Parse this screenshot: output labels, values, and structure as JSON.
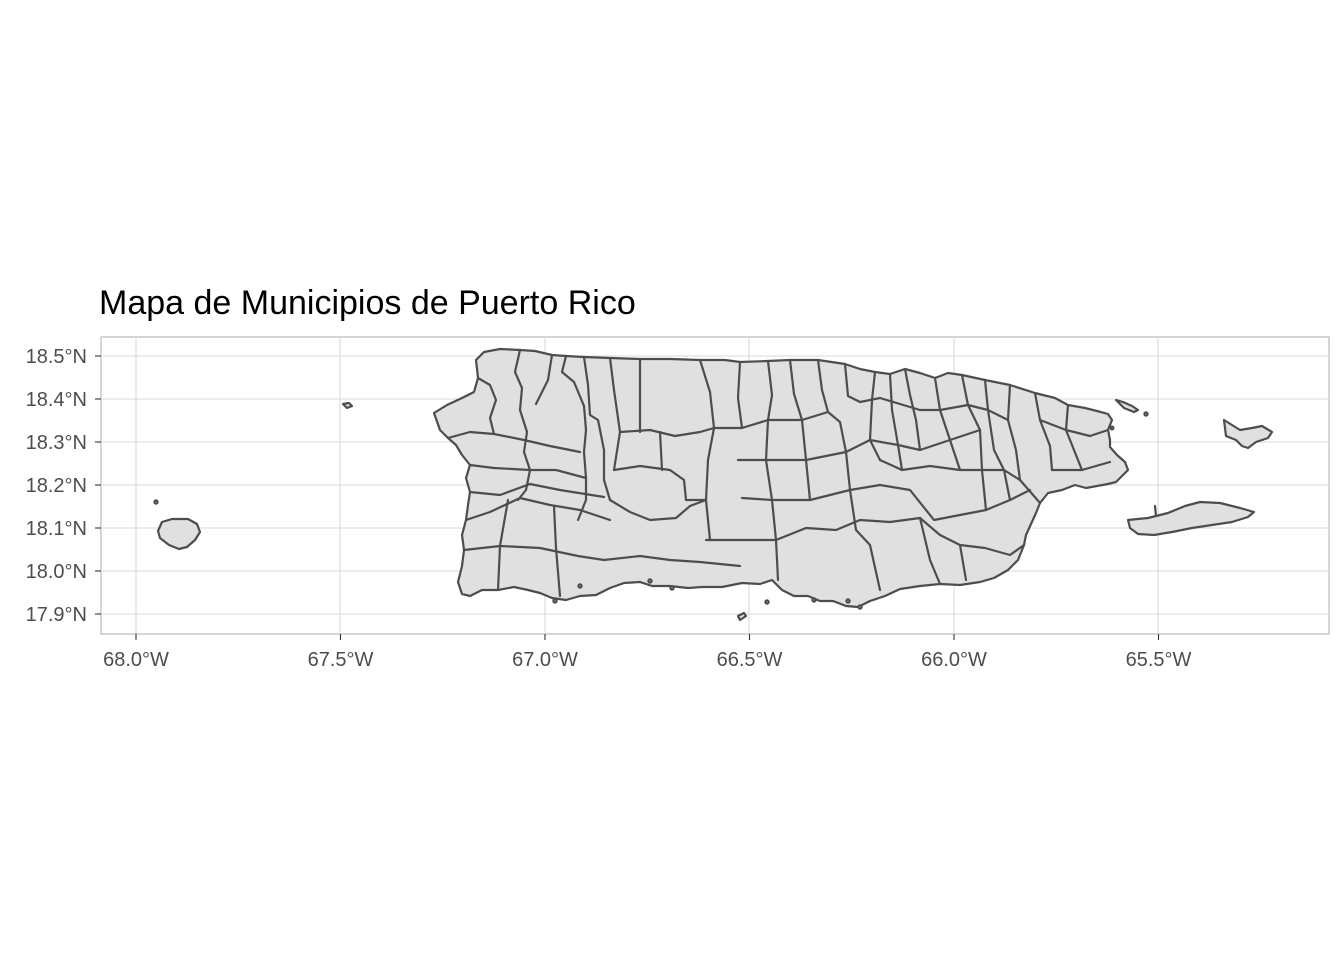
{
  "title": "Mapa de Municipios de Puerto Rico",
  "x_axis": {
    "ticks": [
      {
        "value": -68.0,
        "label": "68.0°W"
      },
      {
        "value": -67.5,
        "label": "67.5°W"
      },
      {
        "value": -67.0,
        "label": "67.0°W"
      },
      {
        "value": -66.5,
        "label": "66.5°W"
      },
      {
        "value": -66.0,
        "label": "66.0°W"
      },
      {
        "value": -65.5,
        "label": "65.5°W"
      }
    ]
  },
  "y_axis": {
    "ticks": [
      {
        "value": 18.5,
        "label": "18.5°N"
      },
      {
        "value": 18.4,
        "label": "18.4°N"
      },
      {
        "value": 18.3,
        "label": "18.3°N"
      },
      {
        "value": 18.2,
        "label": "18.2°N"
      },
      {
        "value": 18.1,
        "label": "18.1°N"
      },
      {
        "value": 18.0,
        "label": "18.0°N"
      },
      {
        "value": 17.9,
        "label": "17.9°N"
      }
    ]
  },
  "colors": {
    "fill": "#e0e0e0",
    "border": "#4d4d4d",
    "grid": "#d9d9d9"
  }
}
